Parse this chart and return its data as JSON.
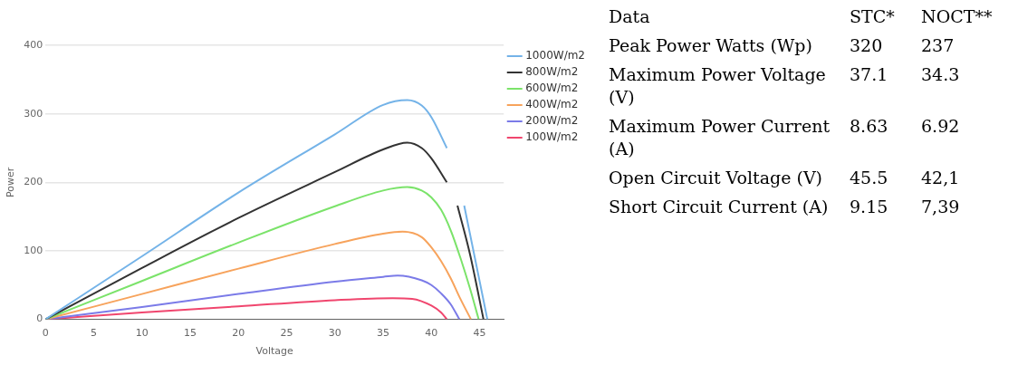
{
  "chart_data": [
    {
      "type": "line",
      "xlabel": "Voltage",
      "ylabel": "Power",
      "xlim": [
        0,
        47.5
      ],
      "ylim": [
        0,
        400
      ],
      "xticks": [
        0,
        5,
        10,
        15,
        20,
        25,
        30,
        35,
        40,
        45
      ],
      "yticks": [
        0,
        100,
        200,
        300,
        400
      ],
      "grid": "y",
      "legend": "top right",
      "marker": "none",
      "line_style": "solid",
      "series": [
        {
          "name": "1000W/m2",
          "color": "#74b3e8",
          "x": [
            0,
            10,
            20,
            30,
            35,
            37.5,
            39,
            40,
            41.6,
            42.5,
            43.4,
            44.5,
            45.8
          ],
          "values": [
            0,
            92,
            185,
            270,
            313,
            320,
            312,
            295,
            250,
            null,
            166,
            90,
            0
          ]
        },
        {
          "name": "800W/m2",
          "color": "#333333",
          "x": [
            0,
            10,
            20,
            30,
            35,
            37.5,
            39,
            40,
            41.6,
            42.2,
            42.7,
            44,
            45.4
          ],
          "values": [
            0,
            75,
            148,
            215,
            248,
            258,
            250,
            235,
            200,
            null,
            166,
            95,
            0
          ]
        },
        {
          "name": "600W/m2",
          "color": "#7be36a",
          "x": [
            0,
            10,
            20,
            30,
            35,
            37.5,
            39,
            40,
            41,
            42,
            43,
            44,
            44.9
          ],
          "values": [
            0,
            56,
            112,
            165,
            188,
            193,
            188,
            178,
            160,
            130,
            90,
            45,
            0
          ]
        },
        {
          "name": "400W/m2",
          "color": "#f7a35c",
          "x": [
            0,
            10,
            20,
            30,
            35,
            37,
            39,
            40,
            41,
            42,
            43,
            44.1
          ],
          "values": [
            0,
            37,
            74,
            110,
            125,
            128,
            120,
            105,
            85,
            60,
            30,
            0
          ]
        },
        {
          "name": "200W/m2",
          "color": "#7b7be8",
          "x": [
            0,
            10,
            20,
            30,
            35,
            36.5,
            39,
            40,
            41,
            42,
            42.9
          ],
          "values": [
            0,
            18,
            37,
            55,
            62,
            64,
            57,
            50,
            38,
            22,
            0
          ]
        },
        {
          "name": "100W/m2",
          "color": "#f0466e",
          "x": [
            0,
            10,
            20,
            30,
            36,
            38,
            40,
            41,
            41.6
          ],
          "values": [
            0,
            10,
            19,
            28,
            31,
            30,
            20,
            10,
            0
          ]
        }
      ]
    },
    {
      "type": "other",
      "annotations": [
        "Data",
        "STC*",
        "NOCT**",
        "Peak Power Watts (Wp)",
        "320",
        "237",
        "Maximum Power Voltage  (V)",
        "37.1",
        "34.3",
        "Maximum Power Current (A)",
        "8.63",
        "6.92",
        "Open Circuit Voltage (V)",
        "45.5",
        "42,1",
        "Short Circuit Current (A)",
        "9.15",
        "7,39"
      ]
    }
  ]
}
